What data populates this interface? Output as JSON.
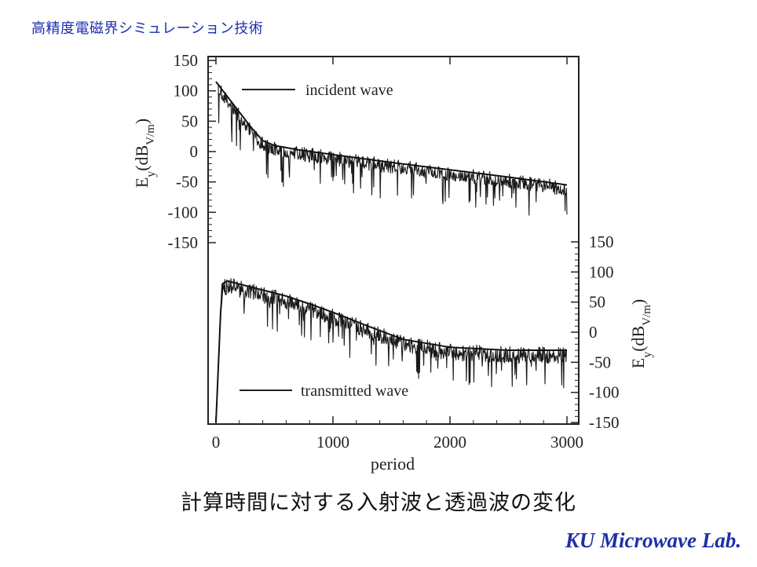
{
  "slide": {
    "title": "高精度電磁界シミュレーション技術",
    "caption": "計算時間に対する入射波と透過波の変化",
    "lab": "KU Microwave Lab."
  },
  "chart_data": {
    "type": "line",
    "xlabel": "period",
    "x_ticks": [
      "0",
      "1000",
      "2000",
      "3000"
    ],
    "xlim": [
      0,
      3000
    ],
    "top_panel": {
      "ylabel": "Ey(dBV/m)",
      "ylabel_parts": {
        "main": "E",
        "sub": "y",
        "mid": "(dB",
        "sub2": "V/m",
        "end": ")"
      },
      "y_ticks": [
        "150",
        "100",
        "50",
        "0",
        "-50",
        "-100",
        "-150"
      ],
      "ylim": [
        -150,
        150
      ],
      "series": [
        {
          "name": "incident wave",
          "x": [
            0,
            100,
            200,
            300,
            400,
            500,
            700,
            1000,
            1500,
            2000,
            2500,
            3000
          ],
          "y": [
            115,
            90,
            65,
            40,
            18,
            10,
            3,
            -5,
            -18,
            -30,
            -42,
            -55
          ]
        }
      ]
    },
    "bottom_panel": {
      "ylabel": "Ey(dBV/m)",
      "ylabel_parts": {
        "main": "E",
        "sub": "y",
        "mid": "(dB",
        "sub2": "V/m",
        "end": ")"
      },
      "y_ticks": [
        "150",
        "100",
        "50",
        "0",
        "-50",
        "-100",
        "-150"
      ],
      "ylim": [
        -150,
        150
      ],
      "series": [
        {
          "name": "transmitted wave",
          "x": [
            0,
            50,
            100,
            200,
            400,
            600,
            800,
            1000,
            1300,
            1600,
            2000,
            2500,
            3000
          ],
          "y": [
            -150,
            80,
            85,
            80,
            70,
            60,
            47,
            33,
            10,
            -12,
            -25,
            -30,
            -30
          ]
        }
      ]
    }
  }
}
